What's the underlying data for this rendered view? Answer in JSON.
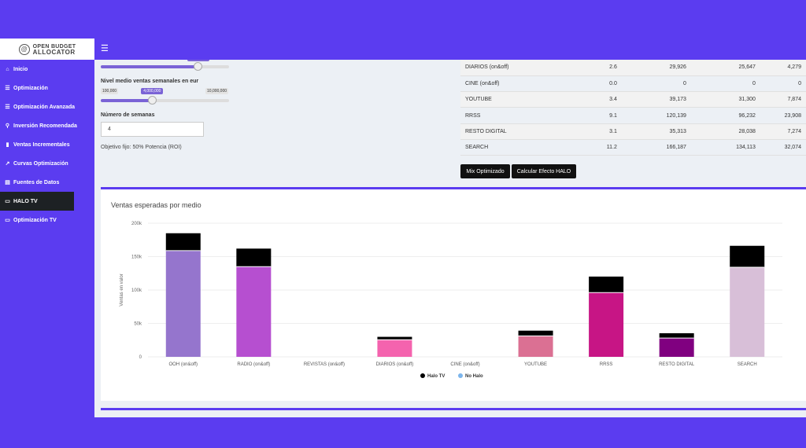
{
  "logo": {
    "line1": "OPEN BUDGET",
    "line2": "ALLOCATOR",
    "mark": "@"
  },
  "topbar": {
    "menu_icon": "☰"
  },
  "sidebar": {
    "items": [
      {
        "label": "Inicio",
        "icon": "home-icon",
        "glyph": "⌂"
      },
      {
        "label": "Optimización",
        "icon": "sliders-icon",
        "glyph": "☰"
      },
      {
        "label": "Optimización Avanzada",
        "icon": "sliders-icon",
        "glyph": "☰"
      },
      {
        "label": "Inversión Recomendada",
        "icon": "search-icon",
        "glyph": "⚲"
      },
      {
        "label": "Ventas Incrementales",
        "icon": "bar-chart-icon",
        "glyph": "▮"
      },
      {
        "label": "Curvas Optimización",
        "icon": "line-chart-icon",
        "glyph": "↗"
      },
      {
        "label": "Fuentes de Datos",
        "icon": "database-icon",
        "glyph": "▤"
      },
      {
        "label": "HALO TV",
        "icon": "tv-icon",
        "glyph": "▭"
      },
      {
        "label": "Optimización TV",
        "icon": "tv-icon",
        "glyph": "▭"
      }
    ],
    "active_index": 7
  },
  "controls": {
    "ventas_label": "Nivel medio ventas semanales en eur",
    "ventas_min": "100,000",
    "ventas_value": "4,000,000",
    "ventas_max": "10,000,000",
    "ventas_fraction": 0.4,
    "top_slider_fraction": 0.76,
    "semanas_label": "Número de semanas",
    "semanas_value": "4",
    "objetivo_text": "Objetivo fijo: 50% Potencia (ROI)"
  },
  "table": {
    "rows": [
      [
        "DIARIOS (on&off)",
        "2.6",
        "29,926",
        "25,647",
        "4,279"
      ],
      [
        "CINE (on&off)",
        "0.0",
        "0",
        "0",
        "0"
      ],
      [
        "YOUTUBE",
        "3.4",
        "39,173",
        "31,300",
        "7,874"
      ],
      [
        "RRSS",
        "9.1",
        "120,139",
        "96,232",
        "23,908"
      ],
      [
        "RESTO DIGITAL",
        "3.1",
        "35,313",
        "28,038",
        "7,274"
      ],
      [
        "SEARCH",
        "11.2",
        "166,187",
        "134,113",
        "32,074"
      ]
    ]
  },
  "buttons": {
    "mix": "Mix Optimizado",
    "halo": "Calcular Efecto HALO"
  },
  "chart_box": {
    "title": "Ventas esperadas por medio"
  },
  "chart_data": {
    "type": "bar",
    "stacked": true,
    "ylabel": "Ventas en valor",
    "ylim": [
      0,
      200000
    ],
    "yticks": [
      "0",
      "50k",
      "100k",
      "150k",
      "200k"
    ],
    "categories": [
      "OOH (on&off)",
      "RADIO (on&off)",
      "REVISTAS (on&off)",
      "DIARIOS (on&off)",
      "CINE (on&off)",
      "YOUTUBE",
      "RRSS",
      "RESTO DIGITAL",
      "SEARCH"
    ],
    "series": [
      {
        "name": "No Halo",
        "values": [
          159000,
          135000,
          0,
          25647,
          0,
          31300,
          96232,
          28038,
          134113
        ],
        "legend_color": "#7cb5ec"
      },
      {
        "name": "Halo TV",
        "values": [
          26000,
          27000,
          0,
          4279,
          0,
          7874,
          23908,
          7274,
          32074
        ],
        "legend_color": "#000000"
      }
    ],
    "bar_colors": [
      "#9575cd",
      "#b64fd0",
      "#cccccc",
      "#f463ae",
      "#cccccc",
      "#db7093",
      "#c71585",
      "#800080",
      "#d8bfd8"
    ],
    "legend_position": "bottom"
  }
}
